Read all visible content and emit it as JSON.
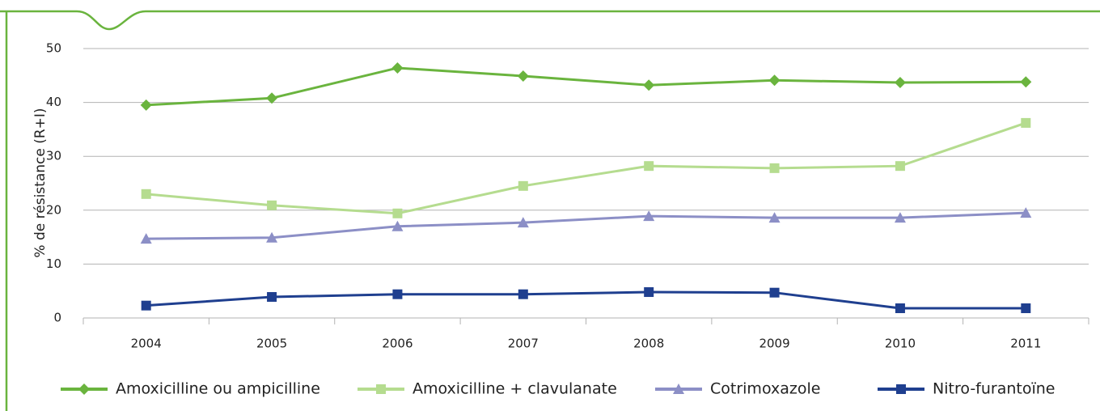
{
  "chart_data": {
    "type": "line",
    "y_label": "% de résistance (R+I)",
    "categories": [
      "2004",
      "2005",
      "2006",
      "2007",
      "2008",
      "2009",
      "2010",
      "2011"
    ],
    "series": [
      {
        "name": "Amoxicilline ou ampicilline",
        "color": "#6ab43e",
        "marker": "diamond",
        "values": [
          39.5,
          40.8,
          46.4,
          44.9,
          43.2,
          44.1,
          43.7,
          43.8
        ]
      },
      {
        "name": "Amoxicilline  + clavulanate",
        "color": "#b5dc8f",
        "marker": "square",
        "values": [
          23.0,
          20.9,
          19.4,
          24.5,
          28.2,
          27.8,
          28.2,
          36.2
        ]
      },
      {
        "name": "Cotrimoxazole",
        "color": "#8c8fc6",
        "marker": "triangle",
        "values": [
          14.7,
          14.9,
          17.0,
          17.7,
          18.9,
          18.6,
          18.6,
          19.5
        ]
      },
      {
        "name": "Nitro-furantoïne",
        "color": "#1f3f8f",
        "marker": "square",
        "values": [
          2.3,
          3.9,
          4.4,
          4.4,
          4.8,
          4.7,
          1.8,
          1.8
        ]
      }
    ],
    "ylim": [
      0,
      50
    ],
    "yticks": [
      0,
      10,
      20,
      30,
      40,
      50
    ],
    "grid": true,
    "legend": "bottom"
  }
}
